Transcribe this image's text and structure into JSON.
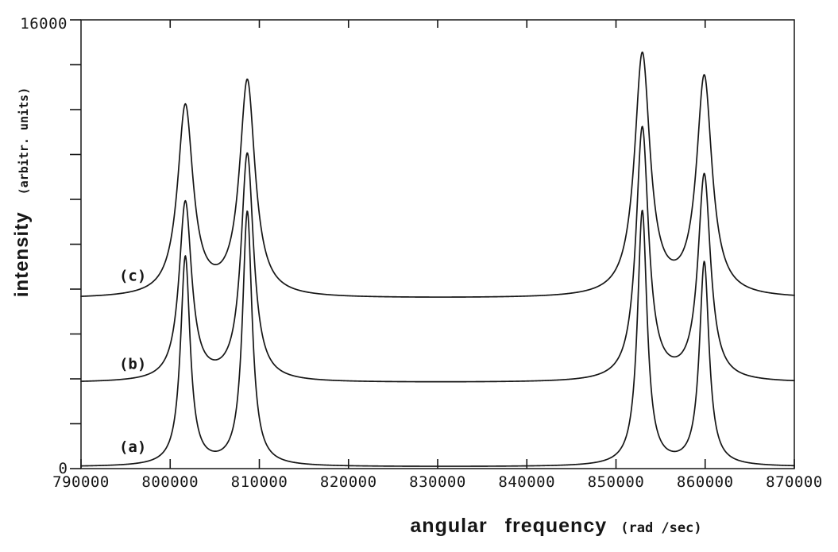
{
  "figure": {
    "background": "#ffffff",
    "ink_color": "#161616"
  },
  "chart_data": {
    "type": "line",
    "title": "",
    "xlabel": "angular frequency",
    "xlabel_unit": "(rad /sec)",
    "ylabel": "intensity",
    "ylabel_unit": "(arbitr. units)",
    "xlim": [
      790000,
      870000
    ],
    "ylim": [
      0,
      16000
    ],
    "x_ticks": [
      790000,
      800000,
      810000,
      820000,
      830000,
      840000,
      850000,
      860000,
      870000
    ],
    "y_tick_labels": {
      "top": "16000",
      "bottom": "0"
    },
    "y_minor_tick_step": 1600,
    "grid": false,
    "legend_position": "inline-curve-labels",
    "curve_description": "Three vertically offset spectra, each a sum of four Lorentzian peaks (two doublet pairs, inner lines taller than outer)",
    "series": [
      {
        "label": "(a)",
        "label_anchor": {
          "x": 795800,
          "y": 800
        },
        "baseline_offset": 60,
        "hwhm": 650,
        "peaks": [
          {
            "center": 801700,
            "amplitude": 7450
          },
          {
            "center": 808650,
            "amplitude": 9060
          },
          {
            "center": 852950,
            "amplitude": 9090
          },
          {
            "center": 859900,
            "amplitude": 7250
          }
        ]
      },
      {
        "label": "(b)",
        "label_anchor": {
          "x": 795800,
          "y": 3750
        },
        "baseline_offset": 3060,
        "hwhm": 850,
        "peaks": [
          {
            "center": 801700,
            "amplitude": 6370
          },
          {
            "center": 808650,
            "amplitude": 8100
          },
          {
            "center": 852950,
            "amplitude": 9030
          },
          {
            "center": 859900,
            "amplitude": 7330
          }
        ]
      },
      {
        "label": "(c)",
        "label_anchor": {
          "x": 795800,
          "y": 6900
        },
        "baseline_offset": 6060,
        "hwhm": 1050,
        "peaks": [
          {
            "center": 801700,
            "amplitude": 6770
          },
          {
            "center": 808650,
            "amplitude": 7670
          },
          {
            "center": 852950,
            "amplitude": 8610
          },
          {
            "center": 859900,
            "amplitude": 7790
          }
        ]
      }
    ]
  }
}
